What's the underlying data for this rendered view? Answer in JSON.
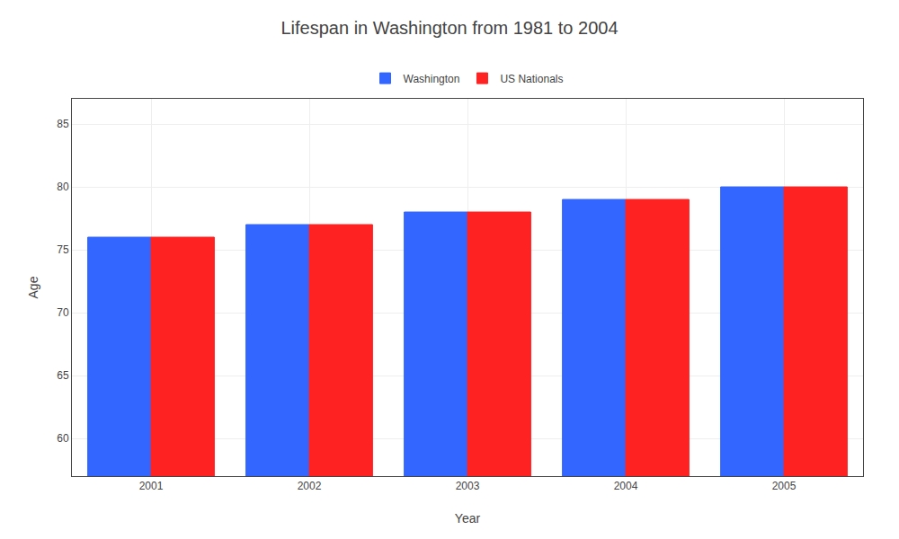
{
  "chart_data": {
    "type": "bar",
    "title": "Lifespan in Washington from 1981 to 2004",
    "xlabel": "Year",
    "ylabel": "Age",
    "categories": [
      "2001",
      "2002",
      "2003",
      "2004",
      "2005"
    ],
    "series": [
      {
        "name": "Washington",
        "color": "#3366ff",
        "values": [
          76,
          77,
          78,
          79,
          80
        ]
      },
      {
        "name": "US Nationals",
        "color": "#ff2222",
        "values": [
          76,
          77,
          78,
          79,
          80
        ]
      }
    ],
    "ylim": [
      57,
      87
    ],
    "yticks": [
      60,
      65,
      70,
      75,
      80,
      85
    ],
    "grid": true,
    "legend": "top"
  }
}
